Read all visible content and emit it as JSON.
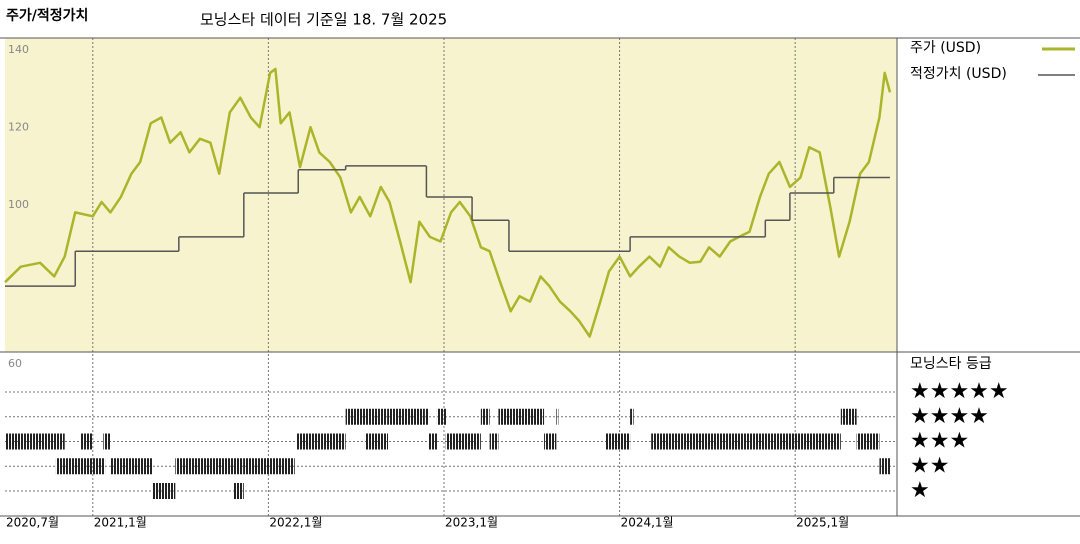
{
  "header": {
    "title": "주가/적정가치",
    "date_note": "모닝스타 데이터 기준일 18. 7월 2025"
  },
  "chart_data": [
    {
      "type": "line",
      "background": "#f7f3cf",
      "xlim": [
        2020.5,
        2025.58
      ],
      "ylim": [
        60,
        141
      ],
      "yticks": [
        100,
        120,
        140
      ],
      "xticks": [
        {
          "value": 2020.5,
          "label": "2020,7월"
        },
        {
          "value": 2021,
          "label": "2021,1월"
        },
        {
          "value": 2022,
          "label": "2022,1월"
        },
        {
          "value": 2023,
          "label": "2023,1월"
        },
        {
          "value": 2024,
          "label": "2024,1월"
        },
        {
          "value": 2025,
          "label": "2025,1월"
        }
      ],
      "series": [
        {
          "name": "주가 (USD)",
          "color": "#aab52a",
          "x": [
            2020.5,
            2020.59,
            2020.7,
            2020.78,
            2020.84,
            2020.9,
            2021.0,
            2021.05,
            2021.1,
            2021.16,
            2021.22,
            2021.27,
            2021.33,
            2021.39,
            2021.44,
            2021.5,
            2021.55,
            2021.61,
            2021.67,
            2021.72,
            2021.78,
            2021.84,
            2021.9,
            2021.95,
            2022.01,
            2022.04,
            2022.07,
            2022.12,
            2022.18,
            2022.24,
            2022.29,
            2022.35,
            2022.41,
            2022.47,
            2022.52,
            2022.58,
            2022.64,
            2022.69,
            2022.75,
            2022.81,
            2022.86,
            2022.92,
            2022.98,
            2023.04,
            2023.09,
            2023.15,
            2023.21,
            2023.26,
            2023.32,
            2023.38,
            2023.43,
            2023.49,
            2023.55,
            2023.6,
            2023.66,
            2023.72,
            2023.77,
            2023.83,
            2023.89,
            2023.94,
            2024.0,
            2024.06,
            2024.11,
            2024.17,
            2024.23,
            2024.28,
            2024.34,
            2024.4,
            2024.46,
            2024.51,
            2024.57,
            2024.63,
            2024.68,
            2024.74,
            2024.8,
            2024.85,
            2024.91,
            2024.97,
            2025.03,
            2025.08,
            2025.14,
            2025.2,
            2025.25,
            2025.31,
            2025.37,
            2025.42,
            2025.48,
            2025.51,
            2025.54
          ],
          "values": [
            78,
            82,
            83,
            79.5,
            84.6,
            96,
            95,
            98.7,
            96,
            100,
            106,
            109,
            119,
            120.5,
            114,
            116.7,
            111.5,
            115,
            114,
            106,
            121.8,
            125.6,
            120.5,
            118,
            132,
            133,
            119,
            121.8,
            107.7,
            118,
            111.5,
            109,
            105,
            96,
            100,
            95,
            102.6,
            98.7,
            88.5,
            78,
            93.6,
            89.7,
            88.5,
            96,
            98.7,
            95,
            87,
            86,
            78,
            70.5,
            74.4,
            73,
            79.5,
            77,
            73,
            70.5,
            68,
            64,
            73,
            80.8,
            84.6,
            79.5,
            82,
            84.6,
            82,
            87,
            84.6,
            83,
            83.3,
            87,
            84.6,
            88.5,
            89.7,
            91,
            100,
            106,
            109,
            102.6,
            105,
            112.8,
            111.5,
            97.4,
            84.6,
            93.6,
            106,
            109,
            120.5,
            132,
            127
          ]
        },
        {
          "name": "적정가치 (USD)",
          "color": "#555555",
          "step": "post",
          "x": [
            2020.5,
            2020.9,
            2021.49,
            2021.86,
            2022.17,
            2022.44,
            2022.9,
            2023.16,
            2023.37,
            2024.06,
            2024.83,
            2024.97,
            2025.22,
            2025.54
          ],
          "values": [
            77,
            86,
            89.7,
            101,
            107,
            108,
            100,
            94,
            86,
            89.7,
            94,
            101,
            105,
            105
          ]
        }
      ]
    },
    {
      "type": "rating",
      "title": "모닝스타 등급",
      "corner_label": "60",
      "levels": [
        5,
        4,
        3,
        2,
        1
      ],
      "level_labels": [
        "★★★★★",
        "★★★★",
        "★★★",
        "★★",
        "★"
      ],
      "start": [
        2020.5,
        2020.79,
        2020.81,
        2020.86,
        2020.93,
        2020.97,
        2021.01,
        2021.06,
        2021.1,
        2021.34,
        2021.47,
        2021.8,
        2021.82,
        2021.86,
        2022.16,
        2022.44,
        2022.55,
        2022.57,
        2022.67,
        2022.68,
        2022.89,
        2022.91,
        2022.96,
        2023.0,
        2023.01,
        2023.21,
        2023.24,
        2023.26,
        2023.31,
        2023.55,
        2023.57,
        2023.64,
        2023.92,
        2024.06,
        2024.18,
        2025.26,
        2025.35,
        2025.48
      ],
      "end": [
        2020.84,
        2020.81,
        2020.86,
        2020.97,
        2021.0,
        2021.01,
        2021.07,
        2021.1,
        2021.34,
        2021.47,
        2021.82,
        2021.86,
        2021.86,
        2022.15,
        2022.44,
        2022.57,
        2022.67,
        2022.68,
        2022.68,
        2022.89,
        2022.91,
        2022.96,
        2023.0,
        2023.0,
        2023.21,
        2023.24,
        2023.26,
        2023.31,
        2023.55,
        2023.57,
        2023.64,
        2023.64,
        2024.06,
        2024.08,
        2025.26,
        2025.35,
        2025.48,
        2025.54
      ],
      "stars": [
        3,
        2,
        2,
        2,
        3,
        2,
        2,
        3,
        2,
        1,
        2,
        1,
        2,
        2,
        3,
        4,
        3,
        4,
        3,
        4,
        4,
        3,
        4,
        4,
        3,
        4,
        4,
        3,
        4,
        4,
        3,
        4,
        3,
        4,
        3,
        4,
        3,
        2
      ]
    }
  ]
}
